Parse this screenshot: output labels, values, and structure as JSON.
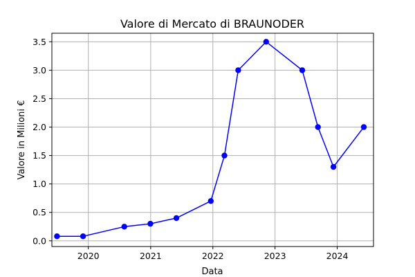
{
  "chart_data": {
    "type": "line",
    "title": "Valore di Mercato di BRAUNODER",
    "xlabel": "Data",
    "ylabel": "Valore in Milioni €",
    "x_axis_type": "date",
    "xlim": [
      "2019-06-01",
      "2024-08-01"
    ],
    "ylim": [
      -0.1,
      3.65
    ],
    "x_ticks": [
      "2020",
      "2021",
      "2022",
      "2023",
      "2024"
    ],
    "y_ticks": [
      "0.0",
      "0.5",
      "1.0",
      "1.5",
      "2.0",
      "2.5",
      "3.0",
      "3.5"
    ],
    "grid": true,
    "color": "#0000ff",
    "marker": "circle",
    "series": [
      {
        "x": [
          "2019-07-01",
          "2019-12-01",
          "2020-07-30",
          "2020-12-30",
          "2021-06-01",
          "2021-12-20",
          "2022-03-10",
          "2022-05-30",
          "2022-11-10",
          "2023-06-10",
          "2023-09-10",
          "2023-12-10",
          "2024-06-05"
        ],
        "values": [
          0.08,
          0.08,
          0.25,
          0.3,
          0.4,
          0.7,
          1.5,
          3.0,
          3.5,
          3.0,
          2.0,
          1.3,
          2.0
        ]
      }
    ]
  }
}
